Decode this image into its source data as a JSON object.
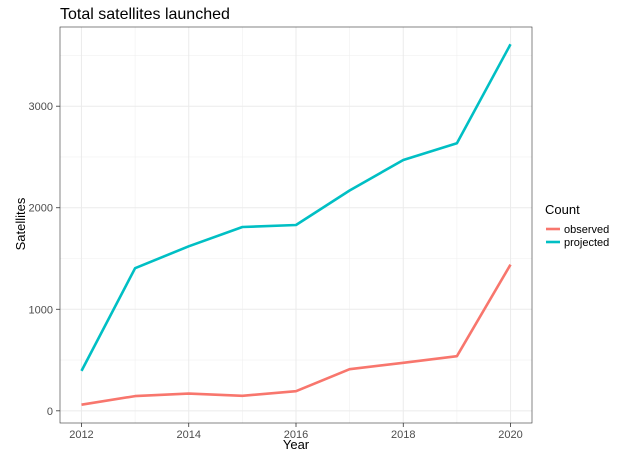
{
  "chart_data": {
    "type": "line",
    "title": "Total satellites launched",
    "xlabel": "Year",
    "ylabel": "Satellites",
    "x": [
      2012,
      2013,
      2014,
      2015,
      2016,
      2017,
      2018,
      2019,
      2020
    ],
    "xticks": [
      "2012",
      "2014",
      "2016",
      "2018",
      "2020"
    ],
    "yticks": [
      "0",
      "1000",
      "2000",
      "3000"
    ],
    "xlim": [
      2011.6,
      2020.4
    ],
    "ylim": [
      -120,
      3780
    ],
    "grid": true,
    "legend": {
      "title": "Count",
      "position": "right"
    },
    "series": [
      {
        "name": "observed",
        "color": "#F8766D",
        "values": [
          60,
          145,
          170,
          148,
          193,
          410,
          473,
          538,
          1440
        ]
      },
      {
        "name": "projected",
        "color": "#00BFC4",
        "values": [
          393,
          1405,
          1620,
          1810,
          1830,
          2170,
          2470,
          2635,
          3610
        ]
      }
    ]
  }
}
